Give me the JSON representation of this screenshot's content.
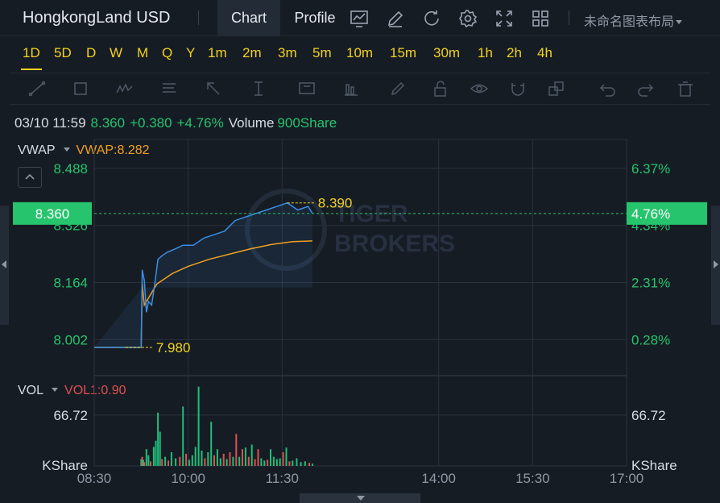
{
  "header": {
    "symbol": "HongkongLand USD",
    "tabs": [
      {
        "label": "Chart",
        "active": true
      },
      {
        "label": "Profile",
        "active": false
      }
    ],
    "icons": [
      "indicator-icon",
      "draw-icon",
      "refresh-icon",
      "settings-icon",
      "fullscreen-icon",
      "layout-grid-icon"
    ],
    "layout_name": "未命名图表布局"
  },
  "intervals": {
    "items": [
      "1D",
      "5D",
      "D",
      "W",
      "M",
      "Q",
      "Y",
      "1m",
      "2m",
      "3m",
      "5m",
      "10m",
      "15m",
      "30m",
      "1h",
      "2h",
      "4h"
    ],
    "active": "1D"
  },
  "toolbar": {
    "tools": [
      "trend-line-icon",
      "rectangle-icon",
      "wave-icon",
      "fib-icon",
      "arrow-icon",
      "measure-icon",
      "text-icon",
      "bars-icon",
      "pencil-icon",
      "lock-icon",
      "eye-icon",
      "magnet-icon",
      "clone-icon",
      "undo-icon",
      "redo-icon",
      "trash-icon"
    ]
  },
  "info": {
    "datetime": "03/10 11:59",
    "price": "8.360",
    "change": "+0.380",
    "change_pct": "+4.76%",
    "volume_label": "Volume",
    "volume_value": "900Share"
  },
  "vwap_panel": {
    "name": "VWAP",
    "value_label": "VWAP:8.282"
  },
  "vol_panel": {
    "name": "VOL",
    "value_label": "VOL1:0.90"
  },
  "colors": {
    "background": "#161c24",
    "grid": "#2a323d",
    "price_line": "#3a8ee6",
    "vwap_line": "#f0a020",
    "up": "#1fbf7a",
    "down": "#e05050",
    "accent_yellow": "#f2d21f",
    "label_green": "#25c46d"
  },
  "chart_data": {
    "type": "line",
    "price_axis": {
      "left_ticks": [
        "8.488",
        "8.326",
        "8.164",
        "8.002"
      ],
      "right_ticks": [
        "6.37%",
        "4.34%",
        "2.31%",
        "0.28%"
      ],
      "current_price_label": "8.360",
      "current_pct_label": "4.76%",
      "ylim": [
        7.9,
        8.57
      ]
    },
    "time_axis": {
      "ticks": [
        "08:30",
        "10:00",
        "11:30",
        "14:00",
        "15:30",
        "17:00"
      ]
    },
    "annotations": {
      "high": "8.390",
      "low": "7.980"
    },
    "series": [
      {
        "key": "price",
        "x": [
          "08:30",
          "09:00",
          "09:15",
          "09:16",
          "09:18",
          "09:20",
          "09:22",
          "09:25",
          "09:28",
          "09:31",
          "09:35",
          "09:40",
          "09:48",
          "09:55",
          "10:05",
          "10:15",
          "10:25",
          "10:35",
          "10:45",
          "10:55",
          "11:05",
          "11:15",
          "11:25",
          "11:35",
          "11:45",
          "11:55",
          "11:59"
        ],
        "values": [
          7.98,
          7.98,
          7.98,
          8.2,
          8.17,
          8.08,
          8.11,
          8.1,
          8.16,
          8.23,
          8.24,
          8.25,
          8.26,
          8.27,
          8.27,
          8.29,
          8.3,
          8.31,
          8.34,
          8.35,
          8.36,
          8.37,
          8.38,
          8.39,
          8.37,
          8.38,
          8.36
        ]
      },
      {
        "key": "vwap",
        "x": [
          "08:30",
          "09:00",
          "09:15",
          "09:16",
          "09:18",
          "09:22",
          "09:30",
          "09:45",
          "10:00",
          "10:20",
          "10:40",
          "11:00",
          "11:20",
          "11:40",
          "11:59"
        ],
        "values": [
          7.98,
          7.98,
          7.98,
          8.16,
          8.1,
          8.12,
          8.16,
          8.19,
          8.21,
          8.23,
          8.245,
          8.26,
          8.272,
          8.28,
          8.282
        ]
      }
    ],
    "volume": {
      "axis_ticks": [
        "66.72",
        "KShare"
      ],
      "ylim": [
        0,
        110
      ],
      "bars": [
        {
          "x": "09:15",
          "v": 9,
          "dir": "up"
        },
        {
          "x": "09:16",
          "v": 12,
          "dir": "down"
        },
        {
          "x": "09:17",
          "v": 8,
          "dir": "up"
        },
        {
          "x": "09:18",
          "v": 5,
          "dir": "down"
        },
        {
          "x": "09:20",
          "v": 22,
          "dir": "up"
        },
        {
          "x": "09:22",
          "v": 14,
          "dir": "up"
        },
        {
          "x": "09:24",
          "v": 6,
          "dir": "down"
        },
        {
          "x": "09:27",
          "v": 25,
          "dir": "up"
        },
        {
          "x": "09:29",
          "v": 33,
          "dir": "up"
        },
        {
          "x": "09:31",
          "v": 70,
          "dir": "up"
        },
        {
          "x": "09:33",
          "v": 45,
          "dir": "up"
        },
        {
          "x": "09:35",
          "v": 9,
          "dir": "down"
        },
        {
          "x": "09:38",
          "v": 12,
          "dir": "up"
        },
        {
          "x": "09:41",
          "v": 7,
          "dir": "down"
        },
        {
          "x": "09:44",
          "v": 18,
          "dir": "up"
        },
        {
          "x": "09:48",
          "v": 10,
          "dir": "up"
        },
        {
          "x": "09:52",
          "v": 12,
          "dir": "down"
        },
        {
          "x": "09:55",
          "v": 78,
          "dir": "up"
        },
        {
          "x": "09:58",
          "v": 16,
          "dir": "down"
        },
        {
          "x": "10:01",
          "v": 8,
          "dir": "up"
        },
        {
          "x": "10:04",
          "v": 14,
          "dir": "up"
        },
        {
          "x": "10:07",
          "v": 25,
          "dir": "up"
        },
        {
          "x": "10:10",
          "v": 104,
          "dir": "up"
        },
        {
          "x": "10:13",
          "v": 20,
          "dir": "up"
        },
        {
          "x": "10:16",
          "v": 10,
          "dir": "down"
        },
        {
          "x": "10:19",
          "v": 18,
          "dir": "up"
        },
        {
          "x": "10:22",
          "v": 58,
          "dir": "up"
        },
        {
          "x": "10:25",
          "v": 14,
          "dir": "down"
        },
        {
          "x": "10:28",
          "v": 22,
          "dir": "up"
        },
        {
          "x": "10:31",
          "v": 10,
          "dir": "up"
        },
        {
          "x": "10:34",
          "v": 16,
          "dir": "down"
        },
        {
          "x": "10:37",
          "v": 9,
          "dir": "up"
        },
        {
          "x": "10:40",
          "v": 18,
          "dir": "down"
        },
        {
          "x": "10:43",
          "v": 12,
          "dir": "up"
        },
        {
          "x": "10:46",
          "v": 42,
          "dir": "down"
        },
        {
          "x": "10:49",
          "v": 12,
          "dir": "up"
        },
        {
          "x": "10:52",
          "v": 22,
          "dir": "down"
        },
        {
          "x": "10:55",
          "v": 24,
          "dir": "up"
        },
        {
          "x": "10:58",
          "v": 12,
          "dir": "down"
        },
        {
          "x": "11:01",
          "v": 28,
          "dir": "up"
        },
        {
          "x": "11:04",
          "v": 9,
          "dir": "down"
        },
        {
          "x": "11:07",
          "v": 22,
          "dir": "down"
        },
        {
          "x": "11:10",
          "v": 10,
          "dir": "up"
        },
        {
          "x": "11:13",
          "v": 7,
          "dir": "up"
        },
        {
          "x": "11:16",
          "v": 8,
          "dir": "down"
        },
        {
          "x": "11:19",
          "v": 22,
          "dir": "up"
        },
        {
          "x": "11:22",
          "v": 12,
          "dir": "up"
        },
        {
          "x": "11:25",
          "v": 9,
          "dir": "up"
        },
        {
          "x": "11:28",
          "v": 10,
          "dir": "up"
        },
        {
          "x": "11:31",
          "v": 18,
          "dir": "down"
        },
        {
          "x": "11:34",
          "v": 24,
          "dir": "up"
        },
        {
          "x": "11:37",
          "v": 6,
          "dir": "down"
        },
        {
          "x": "11:40",
          "v": 7,
          "dir": "up"
        },
        {
          "x": "11:44",
          "v": 10,
          "dir": "up"
        },
        {
          "x": "11:48",
          "v": 5,
          "dir": "up"
        },
        {
          "x": "11:52",
          "v": 6,
          "dir": "up"
        },
        {
          "x": "11:56",
          "v": 4,
          "dir": "down"
        },
        {
          "x": "11:59",
          "v": 3,
          "dir": "up"
        }
      ]
    }
  }
}
